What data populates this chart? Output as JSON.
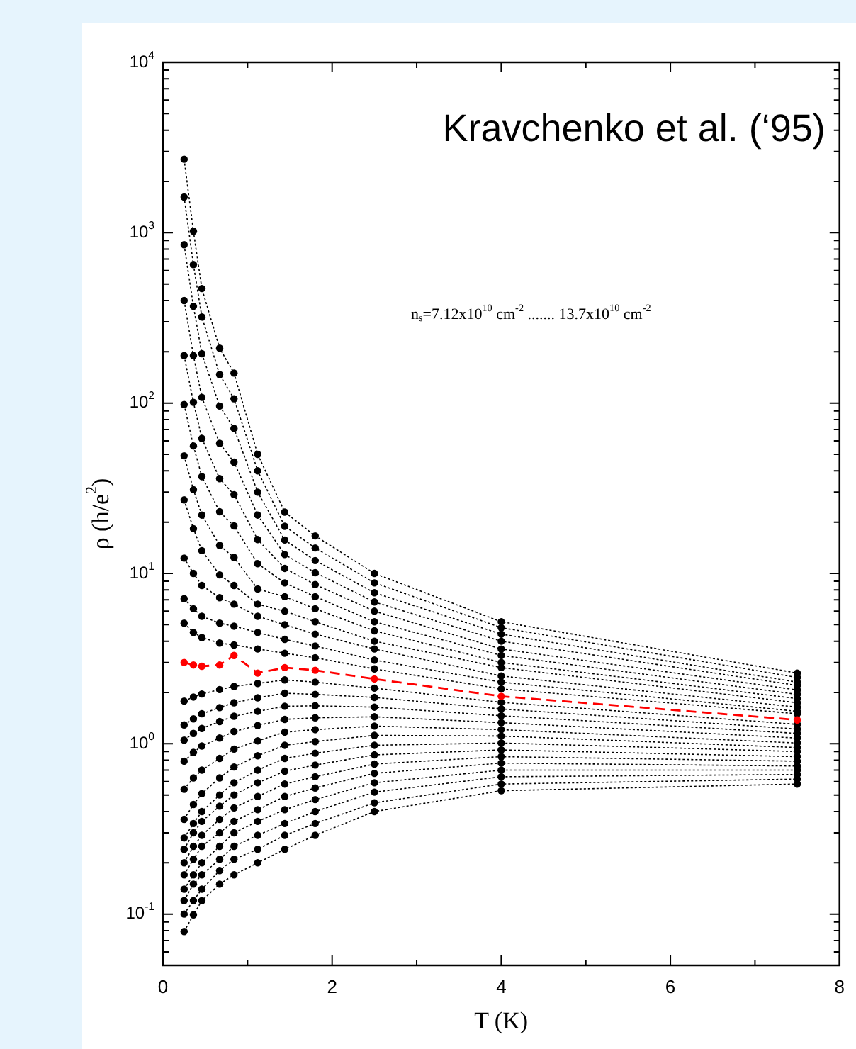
{
  "chart_data": {
    "type": "line",
    "xlabel": "T (K)",
    "ylabel": "ρ (h/e$^{2}$)",
    "annotations": [
      "Kravchenko et al. (‘95)",
      "n$_{s}$=7.12x10$^{10}$ cm$^{-2}$ ....... 13.7x10$^{10}$ cm$^{-2}$"
    ],
    "x": [
      0.25,
      0.36,
      0.46,
      0.67,
      0.84,
      1.12,
      1.44,
      1.8,
      2.5,
      4,
      7.5
    ],
    "log": "y",
    "grid": false,
    "legend": false,
    "marker": "circle",
    "line_style": "dotted",
    "xlim": [
      0,
      8
    ],
    "xticks": [
      0,
      {
        "value": 1,
        "label": null
      },
      2,
      {
        "value": 3,
        "label": null
      },
      4,
      {
        "value": 5,
        "label": null
      },
      6,
      {
        "value": 7,
        "label": null
      },
      8
    ],
    "ylim": [
      0.05,
      10000
    ],
    "yticks": [
      {
        "value": 0.05,
        "label": null
      },
      {
        "value": 0.06,
        "label": null
      },
      {
        "value": 0.07,
        "label": null
      },
      {
        "value": 0.08,
        "label": null
      },
      {
        "value": 0.09,
        "label": null
      },
      {
        "value": 0.1,
        "label": "10$^{-1}$"
      },
      {
        "value": 0.2,
        "label": null
      },
      {
        "value": 0.3,
        "label": null
      },
      {
        "value": 0.4,
        "label": null
      },
      {
        "value": 0.5,
        "label": null
      },
      {
        "value": 0.6,
        "label": null
      },
      {
        "value": 0.7,
        "label": null
      },
      {
        "value": 0.8,
        "label": null
      },
      {
        "value": 0.9,
        "label": null
      },
      {
        "value": 1,
        "label": "10$^{0}$"
      },
      {
        "value": 2,
        "label": null
      },
      {
        "value": 3,
        "label": null
      },
      {
        "value": 4,
        "label": null
      },
      {
        "value": 5,
        "label": null
      },
      {
        "value": 6,
        "label": null
      },
      {
        "value": 7,
        "label": null
      },
      {
        "value": 8,
        "label": null
      },
      {
        "value": 9,
        "label": null
      },
      {
        "value": 10,
        "label": "10$^{1}$"
      },
      {
        "value": 20,
        "label": null
      },
      {
        "value": 30,
        "label": null
      },
      {
        "value": 40,
        "label": null
      },
      {
        "value": 50,
        "label": null
      },
      {
        "value": 60,
        "label": null
      },
      {
        "value": 70,
        "label": null
      },
      {
        "value": 80,
        "label": null
      },
      {
        "value": 90,
        "label": null
      },
      {
        "value": 100,
        "label": "10$^{2}$"
      },
      {
        "value": 200,
        "label": null
      },
      {
        "value": 300,
        "label": null
      },
      {
        "value": 400,
        "label": null
      },
      {
        "value": 500,
        "label": null
      },
      {
        "value": 600,
        "label": null
      },
      {
        "value": 700,
        "label": null
      },
      {
        "value": 800,
        "label": null
      },
      {
        "value": 900,
        "label": null
      },
      {
        "value": 1000,
        "label": "10$^{3}$"
      },
      {
        "value": 2000,
        "label": null
      },
      {
        "value": 3000,
        "label": null
      },
      {
        "value": 4000,
        "label": null
      },
      {
        "value": 5000,
        "label": null
      },
      {
        "value": 6000,
        "label": null
      },
      {
        "value": 7000,
        "label": null
      },
      {
        "value": 8000,
        "label": null
      },
      {
        "value": 9000,
        "label": null
      },
      {
        "value": 10000,
        "label": "10$^{4}$"
      }
    ],
    "series": [
      {
        "color": "#000000",
        "values": [
          2700,
          1020,
          470,
          210,
          150,
          50,
          22.9,
          16.6,
          10,
          5.2,
          2.6
        ]
      },
      {
        "color": "#000000",
        "values": [
          1620,
          650,
          320,
          147,
          106,
          40,
          18.9,
          14.1,
          8.8,
          4.8,
          2.45
        ]
      },
      {
        "color": "#000000",
        "values": [
          850,
          370,
          195,
          96,
          71,
          30,
          15.7,
          11.9,
          7.7,
          4.4,
          2.3
        ]
      },
      {
        "color": "#000000",
        "values": [
          400,
          190,
          108,
          58,
          45,
          22,
          12.9,
          10.1,
          6.8,
          4.0,
          2.2
        ]
      },
      {
        "color": "#000000",
        "values": [
          190,
          101,
          62,
          36,
          29,
          15.8,
          10.7,
          8.6,
          6.0,
          3.6,
          2.07
        ]
      },
      {
        "color": "#000000",
        "values": [
          98,
          56,
          37,
          23,
          19,
          11.4,
          8.8,
          7.3,
          5.2,
          3.3,
          1.95
        ]
      },
      {
        "color": "#000000",
        "values": [
          49,
          31,
          22,
          14.6,
          12.4,
          8.1,
          7.3,
          6.2,
          4.6,
          3.0,
          1.84
        ]
      },
      {
        "color": "#000000",
        "values": [
          27,
          18.3,
          13.6,
          9.8,
          8.5,
          6.6,
          6.0,
          5.2,
          4.0,
          2.8,
          1.74
        ]
      },
      {
        "color": "#000000",
        "values": [
          12.3,
          10,
          8.5,
          7.2,
          6.6,
          5.6,
          5.0,
          4.4,
          3.6,
          2.5,
          1.64
        ]
      },
      {
        "color": "#000000",
        "values": [
          7.1,
          6.2,
          5.6,
          5.1,
          4.9,
          4.5,
          4.1,
          3.75,
          3.1,
          2.3,
          1.55
        ]
      },
      {
        "color": "#000000",
        "values": [
          5.1,
          4.5,
          4.2,
          3.9,
          3.8,
          3.6,
          3.4,
          3.2,
          2.75,
          2.1,
          1.5
        ]
      },
      {
        "color": "#ff0000",
        "line_style": "dashed",
        "values": [
          3.0,
          2.9,
          2.85,
          2.9,
          3.3,
          2.6,
          2.8,
          2.7,
          2.4,
          1.9,
          1.38
        ]
      },
      {
        "color": "#000000",
        "values": [
          1.78,
          1.88,
          1.96,
          2.08,
          2.17,
          2.26,
          2.37,
          2.3,
          2.12,
          1.75,
          1.3
        ]
      },
      {
        "color": "#000000",
        "values": [
          1.29,
          1.4,
          1.5,
          1.63,
          1.74,
          1.86,
          1.98,
          1.95,
          1.87,
          1.6,
          1.22
        ]
      },
      {
        "color": "#000000",
        "values": [
          1.05,
          1.15,
          1.23,
          1.35,
          1.45,
          1.55,
          1.66,
          1.67,
          1.64,
          1.46,
          1.15
        ]
      },
      {
        "color": "#000000",
        "values": [
          0.79,
          0.89,
          0.97,
          1.08,
          1.18,
          1.28,
          1.39,
          1.42,
          1.44,
          1.33,
          1.08
        ]
      },
      {
        "color": "#000000",
        "values": [
          0.54,
          0.63,
          0.7,
          0.82,
          0.93,
          1.04,
          1.17,
          1.21,
          1.27,
          1.21,
          1.01
        ]
      },
      {
        "color": "#000000",
        "values": [
          0.36,
          0.44,
          0.51,
          0.63,
          0.73,
          0.85,
          0.98,
          1.03,
          1.12,
          1.11,
          0.95
        ]
      },
      {
        "color": "#000000",
        "values": [
          0.28,
          0.34,
          0.4,
          0.5,
          0.59,
          0.7,
          0.82,
          0.88,
          0.98,
          1.01,
          0.9
        ]
      },
      {
        "color": "#000000",
        "values": [
          0.24,
          0.3,
          0.35,
          0.43,
          0.5,
          0.59,
          0.69,
          0.75,
          0.86,
          0.92,
          0.84
        ]
      },
      {
        "color": "#000000",
        "values": [
          0.2,
          0.25,
          0.29,
          0.36,
          0.42,
          0.49,
          0.58,
          0.64,
          0.76,
          0.84,
          0.79
        ]
      },
      {
        "color": "#000000",
        "values": [
          0.17,
          0.21,
          0.25,
          0.3,
          0.35,
          0.41,
          0.49,
          0.55,
          0.67,
          0.77,
          0.74
        ]
      },
      {
        "color": "#000000",
        "values": [
          0.14,
          0.17,
          0.2,
          0.25,
          0.3,
          0.35,
          0.41,
          0.47,
          0.59,
          0.7,
          0.7
        ]
      },
      {
        "color": "#000000",
        "values": [
          0.12,
          0.15,
          0.17,
          0.21,
          0.25,
          0.29,
          0.34,
          0.4,
          0.52,
          0.64,
          0.66
        ]
      },
      {
        "color": "#000000",
        "values": [
          0.1,
          0.12,
          0.14,
          0.18,
          0.21,
          0.24,
          0.29,
          0.34,
          0.45,
          0.58,
          0.62
        ]
      },
      {
        "color": "#000000",
        "values": [
          0.079,
          0.099,
          0.12,
          0.15,
          0.17,
          0.2,
          0.24,
          0.29,
          0.4,
          0.53,
          0.58
        ]
      }
    ]
  }
}
